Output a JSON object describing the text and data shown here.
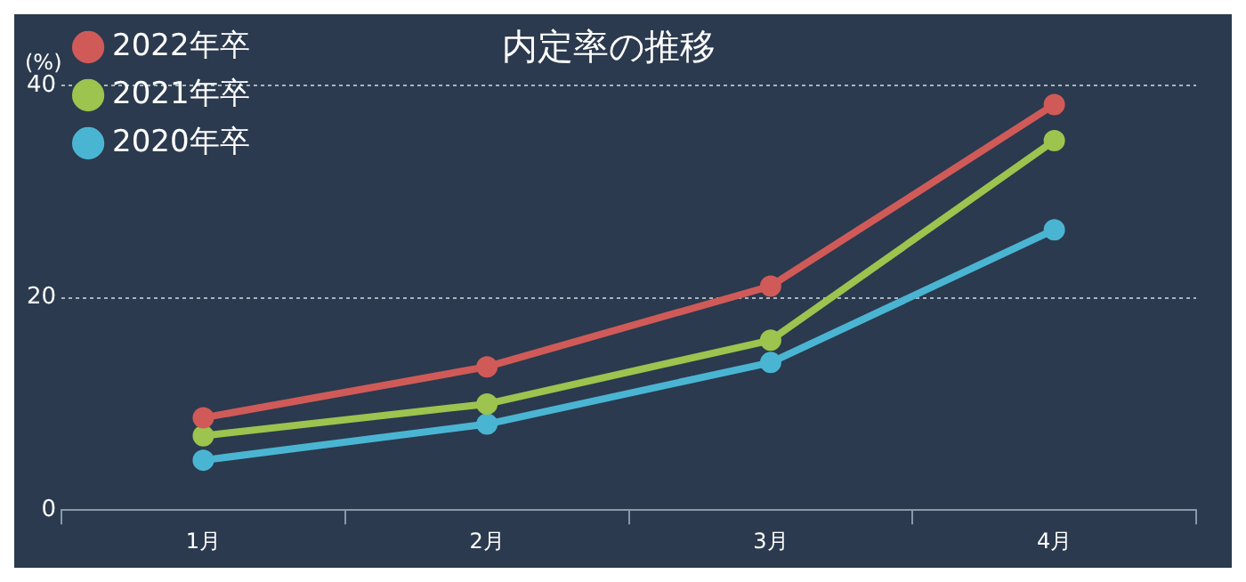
{
  "chart_data": {
    "type": "line",
    "title": "内定率の推移",
    "ylabel": "(%)",
    "categories": [
      "1月",
      "2月",
      "3月",
      "4月"
    ],
    "series": [
      {
        "name": "2022年卒",
        "color": "#d05a58",
        "values": [
          8.7,
          13.5,
          21.1,
          38.2
        ]
      },
      {
        "name": "2021年卒",
        "color": "#9cc44e",
        "values": [
          7.0,
          10.0,
          16.0,
          34.8
        ]
      },
      {
        "name": "2020年卒",
        "color": "#4ab5d3",
        "values": [
          4.7,
          8.1,
          13.9,
          26.4
        ]
      }
    ],
    "ylim": [
      0,
      40
    ],
    "yticks": [
      0,
      20,
      40
    ],
    "grid": "y",
    "legend": "top left",
    "marker": "circle",
    "line_style": "solid"
  }
}
